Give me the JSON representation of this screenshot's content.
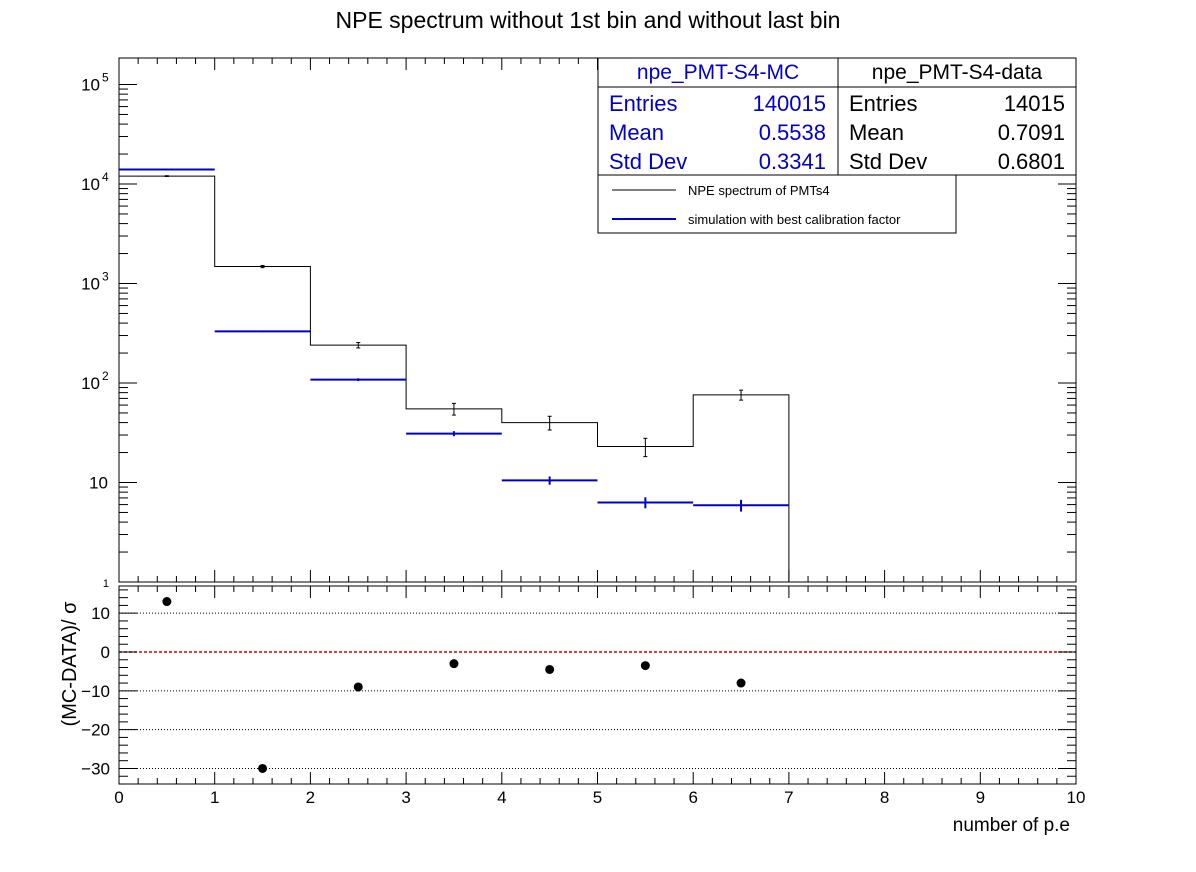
{
  "title": "NPE spectrum without 1st bin and without last bin",
  "colors": {
    "data": "#000000",
    "mc": "#0000cc",
    "zero_line": "#cc0000"
  },
  "stats_mc": {
    "name": "npe_PMT-S4-MC",
    "rows": [
      {
        "label": "Entries",
        "value": "140015"
      },
      {
        "label": "Mean",
        "value": "0.5538"
      },
      {
        "label": "Std Dev",
        "value": "0.3341"
      }
    ]
  },
  "stats_data": {
    "name": "npe_PMT-S4-data",
    "rows": [
      {
        "label": "Entries",
        "value": "14015"
      },
      {
        "label": "Mean",
        "value": "0.7091"
      },
      {
        "label": "Std Dev",
        "value": "0.6801"
      }
    ]
  },
  "legend": [
    {
      "label": "NPE spectrum of PMTs4",
      "color": "#000000"
    },
    {
      "label": "simulation with best calibration factor",
      "color": "#0000cc"
    }
  ],
  "chart_data": [
    {
      "type": "line",
      "scale": "log",
      "title": "NPE spectrum without 1st bin and without last bin",
      "xlim": [
        0,
        10
      ],
      "ylim": [
        1,
        180000
      ],
      "y_ticks": [
        {
          "value": 10,
          "label": "10"
        },
        {
          "value": 100,
          "label": "10",
          "exp": "2"
        },
        {
          "value": 1000,
          "label": "10",
          "exp": "3"
        },
        {
          "value": 10000,
          "label": "10",
          "exp": "4"
        },
        {
          "value": 100000,
          "label": "10",
          "exp": "5"
        }
      ],
      "y_bottom_label": "1",
      "series": [
        {
          "name": "NPE spectrum of PMTs4",
          "bins": [
            [
              0,
              1
            ],
            [
              1,
              2
            ],
            [
              2,
              3
            ],
            [
              3,
              4
            ],
            [
              4,
              5
            ],
            [
              5,
              6
            ],
            [
              6,
              7
            ]
          ],
          "values": [
            12000,
            1480,
            240,
            55,
            40,
            23,
            76
          ],
          "errors": [
            110,
            38,
            15,
            7.4,
            6.3,
            4.8,
            8.7
          ]
        },
        {
          "name": "simulation with best calibration factor",
          "bins": [
            [
              0,
              1
            ],
            [
              1,
              2
            ],
            [
              2,
              3
            ],
            [
              3,
              4
            ],
            [
              4,
              5
            ],
            [
              5,
              6
            ],
            [
              6,
              7
            ]
          ],
          "values": [
            14000,
            330,
            108,
            31,
            10.5,
            6.3,
            5.9
          ],
          "errors": [
            40,
            6,
            3.5,
            1.8,
            1.0,
            0.8,
            0.8
          ]
        }
      ]
    },
    {
      "type": "scatter",
      "ylabel": "(MC-DATA)/ σ",
      "xlabel": "number of p.e",
      "xlim": [
        0,
        10
      ],
      "ylim": [
        -34,
        17
      ],
      "x_ticks": [
        0,
        1,
        2,
        3,
        4,
        5,
        6,
        7,
        8,
        9,
        10
      ],
      "y_ticks": [
        {
          "value": 10,
          "label": "10"
        },
        {
          "value": 0,
          "label": "0"
        },
        {
          "value": -10,
          "label": "−10"
        },
        {
          "value": -20,
          "label": "−20"
        },
        {
          "value": -30,
          "label": "−30"
        }
      ],
      "grid_y": [
        10,
        0,
        -10,
        -20,
        -30
      ],
      "reference_line": 0,
      "x": [
        0.5,
        1.5,
        2.5,
        3.5,
        4.5,
        5.5,
        6.5
      ],
      "y": [
        13,
        -30,
        -9,
        -3,
        -4.5,
        -3.5,
        -8
      ]
    }
  ]
}
